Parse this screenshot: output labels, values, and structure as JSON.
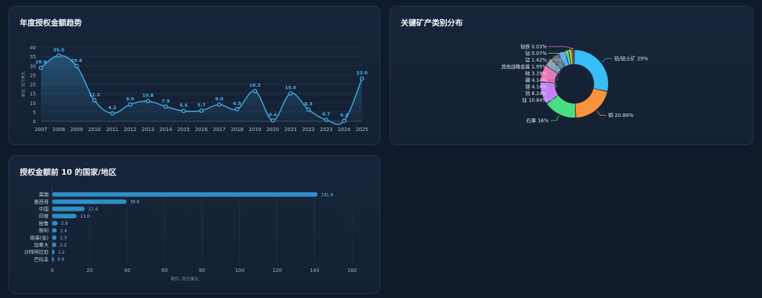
{
  "cards": {
    "trend_title": "年度授权金额趋势",
    "minerals_title": "关键矿产类别分布",
    "countries_title": "授权金额前 10 的国家/地区"
  },
  "colors": {
    "background": "#0f1a2b",
    "card": "#17253a",
    "line": "#3ea6e0",
    "bar": "#2f8fc6"
  },
  "chart_data": [
    {
      "type": "line",
      "title": "年度授权金额趋势",
      "ylabel": "单位: 百万美元",
      "ylim": [
        0,
        40
      ],
      "yticks": [
        0,
        5,
        10,
        15,
        20,
        25,
        30,
        35,
        40
      ],
      "x": [
        "2007",
        "2008",
        "2009",
        "2010",
        "2011",
        "2012",
        "2013",
        "2014",
        "2015",
        "2016",
        "2017",
        "2018",
        "2019",
        "2020",
        "2021",
        "2022",
        "2023",
        "2024",
        "2025"
      ],
      "series": [
        {
          "values": [
            28.9,
            35.5,
            29.8,
            11.3,
            4.2,
            9.0,
            10.8,
            7.9,
            5.5,
            5.7,
            9.0,
            6.5,
            16.3,
            0.4,
            15.0,
            6.3,
            0.7,
            0.2,
            23.0
          ]
        }
      ],
      "area": true,
      "smooth": true,
      "grid": true
    },
    {
      "type": "pie",
      "title": "关键矿产类别分布",
      "donut": true,
      "slices": [
        {
          "label": "铝/铝土矿",
          "text": "铝/铝土矿 29%",
          "value": 29,
          "color": "#38bdf8"
        },
        {
          "label": "铜",
          "text": "铜 20.88%",
          "value": 20.88,
          "color": "#fb923c"
        },
        {
          "label": "石墨",
          "text": "石墨 16%",
          "value": 16,
          "color": "#4ade80"
        },
        {
          "label": "钛",
          "text": "钛 10.84%",
          "value": 10.84,
          "color": "#c084fc"
        },
        {
          "label": "钨",
          "text": "钨 8.24%",
          "value": 8.24,
          "color": "#f472b6"
        },
        {
          "label": "锂",
          "text": "锂 4.14%",
          "value": 4.14,
          "color": "#94a3b8"
        },
        {
          "label": "硼",
          "text": "硼 4.14%",
          "value": 4.14,
          "color": "#64748b"
        },
        {
          "label": "硅",
          "text": "硅 3.29%",
          "value": 3.29,
          "color": "#60a5fa"
        },
        {
          "label": "其他战略金属",
          "text": "其他战略金属 1.95%",
          "value": 1.95,
          "color": "#2dd4bf"
        },
        {
          "label": "锰",
          "text": "锰 1.42%",
          "value": 1.42,
          "color": "#fbbf24"
        },
        {
          "label": "钴",
          "text": "钴 0.07%",
          "value": 0.07,
          "color": "#a3e635"
        },
        {
          "label": "铂族",
          "text": "铂族 0.03%",
          "value": 0.03,
          "color": "#e879f9"
        }
      ]
    },
    {
      "type": "bar",
      "orientation": "horizontal",
      "title": "授权金额前 10 的国家/地区",
      "xlabel": "单位: 百万美元",
      "xlim": [
        0,
        160
      ],
      "xticks": [
        0,
        20,
        40,
        60,
        80,
        100,
        120,
        140,
        160
      ],
      "categories": [
        "美国",
        "墨西哥",
        "中国",
        "印度",
        "秘鲁",
        "智利",
        "刚果(金)",
        "加拿大",
        "沙特阿拉伯",
        "巴拉圭"
      ],
      "values": [
        141.6,
        39.6,
        17.4,
        13.0,
        2.9,
        2.4,
        2.3,
        2.2,
        1.2,
        0.9
      ],
      "value_labels": [
        "141.6",
        "39.6",
        "17.4",
        "13.0",
        "2.9",
        "2.4",
        "2.3",
        "2.2",
        "1.2",
        "0.9"
      ],
      "grid": true
    }
  ]
}
